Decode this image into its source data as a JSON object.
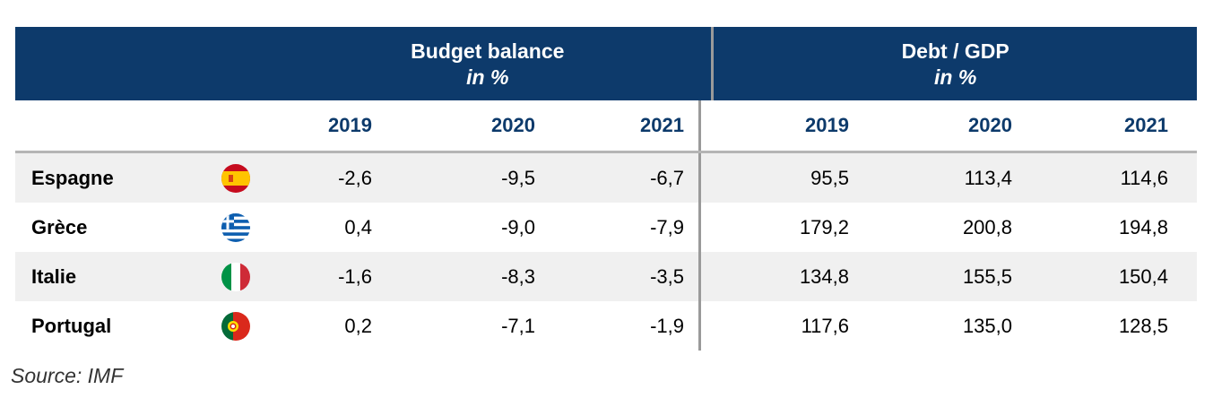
{
  "header": {
    "budget_title": "Budget balance",
    "budget_unit": "in %",
    "debt_title": "Debt / GDP",
    "debt_unit": "in %"
  },
  "years": [
    "2019",
    "2020",
    "2021",
    "2019",
    "2020",
    "2021"
  ],
  "rows": [
    {
      "country": "Espagne",
      "flag": "spain-flag-icon",
      "values": [
        "-2,6",
        "-9,5",
        "-6,7",
        "95,5",
        "113,4",
        "114,6"
      ]
    },
    {
      "country": "Grèce",
      "flag": "greece-flag-icon",
      "values": [
        "0,4",
        "-9,0",
        "-7,9",
        "179,2",
        "200,8",
        "194,8"
      ]
    },
    {
      "country": "Italie",
      "flag": "italy-flag-icon",
      "values": [
        "-1,6",
        "-8,3",
        "-3,5",
        "134,8",
        "155,5",
        "150,4"
      ]
    },
    {
      "country": "Portugal",
      "flag": "portugal-flag-icon",
      "values": [
        "0,2",
        "-7,1",
        "-1,9",
        "117,6",
        "135,0",
        "128,5"
      ]
    }
  ],
  "source": "Source: IMF",
  "colors": {
    "header_bg": "#0d3a6b",
    "year_text": "#0d3a6b",
    "row_shade": "#f0f0f0",
    "separator": "#9a9a9a"
  }
}
